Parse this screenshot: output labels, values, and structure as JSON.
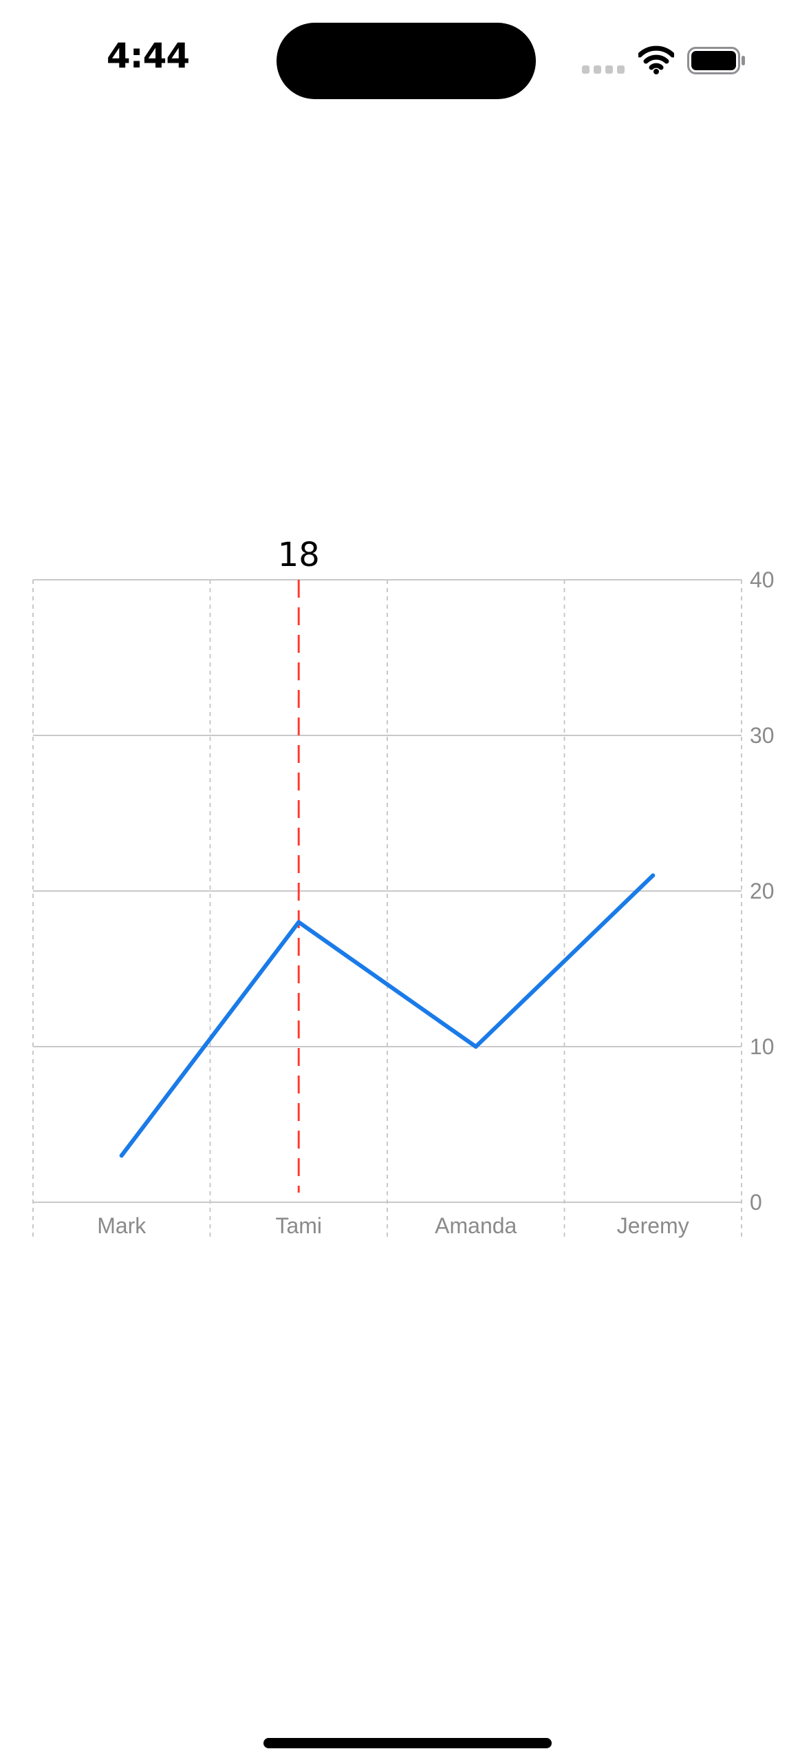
{
  "status_bar": {
    "time": "4:44"
  },
  "colors": {
    "line": "#1a7be8",
    "rule": "#ff3b30",
    "grid": "#c8c8c8",
    "tick_text": "#8a8a8a",
    "annotation_text": "#000000"
  },
  "chart_data": {
    "type": "line",
    "categories": [
      "Mark",
      "Tami",
      "Amanda",
      "Jeremy"
    ],
    "series": [
      {
        "values": [
          3,
          18,
          10,
          21
        ]
      }
    ],
    "ylim": [
      0,
      40
    ],
    "y_ticks": [
      "0",
      "10",
      "20",
      "30",
      "40"
    ],
    "y_axis_position": "right",
    "grid": true,
    "selected_category": "Tami",
    "selected_annotation": "18"
  }
}
